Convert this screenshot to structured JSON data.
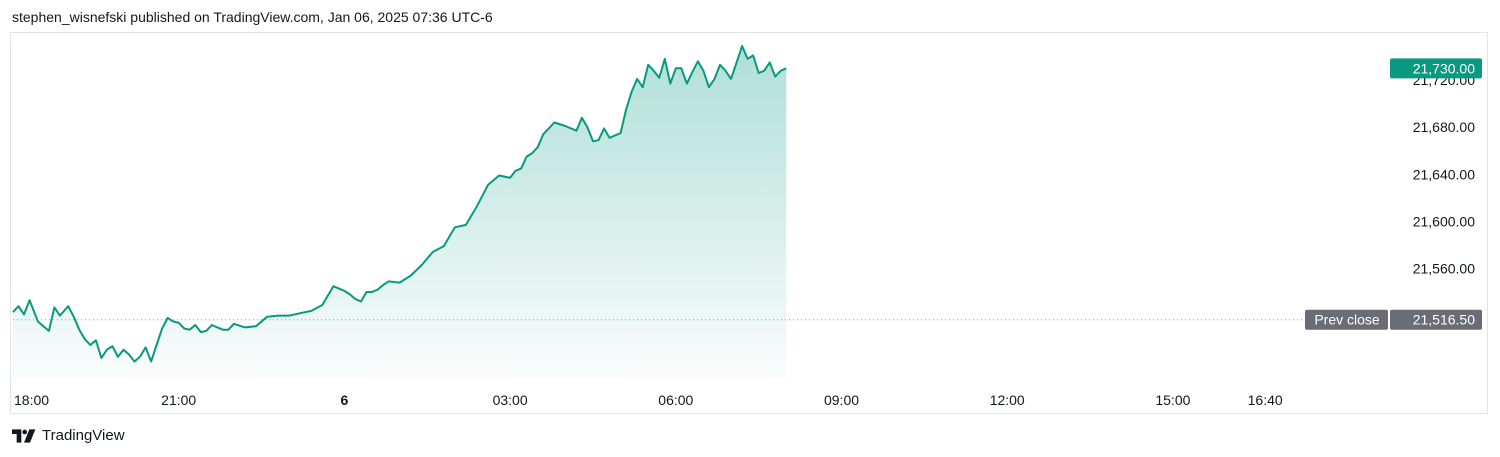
{
  "header": {
    "text": "stephen_wisnefski published on TradingView.com, Jan 06, 2025 07:36 UTC-6"
  },
  "footer": {
    "brand": "TradingView"
  },
  "colors": {
    "line": "#089981",
    "price_badge": "#089981",
    "prev_close_badge": "#6a6d78",
    "dotted": "#9598a1"
  },
  "chart_data": {
    "type": "area",
    "title": "",
    "xlabel": "",
    "ylabel": "",
    "x_axis_labels": [
      {
        "label": "18:00",
        "hours": 0,
        "bold": false
      },
      {
        "label": "21:00",
        "hours": 3,
        "bold": false
      },
      {
        "label": "6",
        "hours": 6,
        "bold": true
      },
      {
        "label": "03:00",
        "hours": 9,
        "bold": false
      },
      {
        "label": "06:00",
        "hours": 12,
        "bold": false
      },
      {
        "label": "09:00",
        "hours": 15,
        "bold": false
      },
      {
        "label": "12:00",
        "hours": 18,
        "bold": false
      },
      {
        "label": "15:00",
        "hours": 21,
        "bold": false
      },
      {
        "label": "16:40",
        "hours": 22.67,
        "bold": false
      }
    ],
    "y_axis_labels": [
      "21,560.00",
      "21,600.00",
      "21,640.00",
      "21,680.00",
      "21,720.00"
    ],
    "y_axis_values": [
      21560,
      21600,
      21640,
      21680,
      21720
    ],
    "ylim": [
      21467,
      21760
    ],
    "xlim_hours": [
      0,
      23.5
    ],
    "last_price": {
      "label": "21,730.00",
      "value": 21730
    },
    "prev_close": {
      "label": "Prev close",
      "value_label": "21,516.50",
      "value": 21516.5
    },
    "series": [
      {
        "x_hours": [
          0,
          0.1,
          0.2,
          0.3,
          0.45,
          0.55,
          0.65,
          0.75,
          0.85,
          1.0,
          1.1,
          1.2,
          1.3,
          1.4,
          1.5,
          1.6,
          1.7,
          1.8,
          1.9,
          2.0,
          2.1,
          2.2,
          2.3,
          2.4,
          2.5,
          2.6,
          2.7,
          2.8,
          2.9,
          3.0,
          3.1,
          3.2,
          3.3,
          3.4,
          3.5,
          3.6,
          3.7,
          3.8,
          3.9,
          4.0,
          4.2,
          4.4,
          4.6,
          4.8,
          5.0,
          5.2,
          5.4,
          5.6,
          5.8,
          6.0,
          6.1,
          6.2,
          6.3,
          6.4,
          6.5,
          6.6,
          6.7,
          6.8,
          7.0,
          7.2,
          7.4,
          7.6,
          7.8,
          8.0,
          8.2,
          8.4,
          8.6,
          8.8,
          9.0,
          9.1,
          9.2,
          9.3,
          9.4,
          9.5,
          9.6,
          9.7,
          9.8,
          10.0,
          10.2,
          10.3,
          10.4,
          10.5,
          10.6,
          10.7,
          10.8,
          11.0,
          11.1,
          11.2,
          11.3,
          11.4,
          11.5,
          11.6,
          11.7,
          11.8,
          11.9,
          12.0,
          12.1,
          12.2,
          12.3,
          12.4,
          12.5,
          12.6,
          12.7,
          12.8,
          12.9,
          13.0,
          13.1,
          13.2,
          13.3,
          13.4,
          13.5,
          13.6,
          13.7,
          13.8,
          13.9,
          14.0
        ],
        "values": [
          21523,
          21528,
          21521,
          21533,
          21515,
          21511,
          21507,
          21527,
          21520,
          21528,
          21519,
          21508,
          21500,
          21495,
          21499,
          21484,
          21491,
          21494,
          21485,
          21491,
          21487,
          21481,
          21485,
          21493,
          21481,
          21495,
          21509,
          21518,
          21515,
          21514,
          21509,
          21508,
          21512,
          21506,
          21507,
          21512,
          21510,
          21508,
          21508,
          21513,
          21510,
          21511,
          21519,
          21520,
          21520,
          21522,
          21524,
          21529,
          21545,
          21541,
          21538,
          21534,
          21532,
          21540,
          21540,
          21542,
          21546,
          21549,
          21548,
          21554,
          21563,
          21574,
          21579,
          21595,
          21597,
          21613,
          21631,
          21639,
          21637,
          21643,
          21645,
          21655,
          21658,
          21663,
          21674,
          21679,
          21684,
          21681,
          21677,
          21688,
          21680,
          21668,
          21669,
          21679,
          21671,
          21675,
          21695,
          21710,
          21721,
          21714,
          21733,
          21728,
          21722,
          21738,
          21717,
          21730,
          21730,
          21717,
          21727,
          21736,
          21728,
          21714,
          21721,
          21733,
          21728,
          21721,
          21735,
          21749,
          21738,
          21741,
          21726,
          21728,
          21735,
          21723,
          21728,
          21730
        ]
      }
    ]
  }
}
